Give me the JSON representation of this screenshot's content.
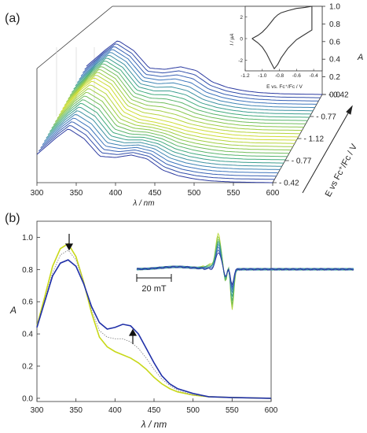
{
  "panel_a": {
    "label": "(a)",
    "x_axis_label": "λ / nm",
    "x_ticks": [
      "300",
      "350",
      "400",
      "450",
      "500",
      "550",
      "600"
    ],
    "z_axis_label": "A",
    "z_ticks": [
      "0.0",
      "0.2",
      "0.4",
      "0.6",
      "0.8",
      "1.0"
    ],
    "depth_axis_label": "E vs Fc⁺/Fc / V",
    "depth_ticks": [
      "- 0.42",
      "- 0.77",
      "- 1.12",
      "- 0.77",
      "- 0.42"
    ],
    "inset": {
      "x_label": "E vs. Fc⁺/Fc / V",
      "y_label": "I / µA",
      "x_ticks": [
        "-1.2",
        "-1.0",
        "-0.8",
        "-0.6",
        "-0.4"
      ],
      "y_ticks": [
        "2",
        "0",
        "-2"
      ]
    }
  },
  "panel_b": {
    "label": "(b)",
    "epr_scale_label": "20 mT"
  },
  "colors": {
    "gradient": [
      "#2b3aa0",
      "#3f7cc0",
      "#3aa880",
      "#8cc84a",
      "#d8e030"
    ],
    "reduced": "#c8d818",
    "oxidized": "#2030a8",
    "intermediate": "#888888"
  },
  "chart_data": [
    {
      "type": "line",
      "subtype": "3d-waterfall",
      "series_count": 28,
      "x_range": [
        300,
        600
      ],
      "z_range": [
        0,
        1.0
      ],
      "depth_sequence_V": [
        -0.42,
        -0.77,
        -1.12,
        -0.77,
        -0.42
      ],
      "xlabel": "λ / nm",
      "ylabel": "A",
      "x_sample": [
        300,
        325,
        340,
        360,
        380,
        400,
        420,
        440,
        460,
        480,
        500,
        520,
        550,
        600
      ],
      "profile_reduced": [
        0.45,
        0.8,
        0.95,
        0.8,
        0.45,
        0.33,
        0.28,
        0.22,
        0.15,
        0.1,
        0.06,
        0.03,
        0.01,
        0.0
      ],
      "profile_oxidized": [
        0.45,
        0.72,
        0.86,
        0.7,
        0.42,
        0.4,
        0.44,
        0.38,
        0.2,
        0.11,
        0.06,
        0.03,
        0.01,
        0.0
      ]
    },
    {
      "type": "line",
      "title": "",
      "xlabel": "E vs. Fc⁺/Fc / V",
      "ylabel": "I / µA",
      "xlim": [
        -1.2,
        -0.3
      ],
      "ylim": [
        -3,
        3
      ],
      "x": [
        -1.12,
        -1.05,
        -1.0,
        -0.95,
        -0.9,
        -0.86,
        -0.82,
        -0.78,
        -0.7,
        -0.6,
        -0.5,
        -0.42
      ],
      "forward": [
        0.0,
        0.3,
        0.6,
        1.0,
        1.5,
        1.9,
        2.2,
        2.4,
        2.6,
        2.8,
        2.9,
        3.0
      ],
      "reverse": [
        0.0,
        -0.4,
        -0.8,
        -1.4,
        -2.2,
        -2.8,
        -2.4,
        -1.8,
        -0.9,
        -0.1,
        0.4,
        0.8
      ]
    },
    {
      "type": "line",
      "xlabel": "λ / nm",
      "ylabel": "A",
      "xlim": [
        300,
        600
      ],
      "ylim": [
        -0.02,
        1.1
      ],
      "x_ticks": [
        "300",
        "350",
        "400",
        "450",
        "500",
        "550",
        "600"
      ],
      "y_ticks": [
        "0.0",
        "0.2",
        "0.4",
        "0.6",
        "0.8",
        "1.0"
      ],
      "x": [
        300,
        310,
        320,
        330,
        340,
        350,
        360,
        370,
        380,
        390,
        400,
        410,
        420,
        430,
        440,
        450,
        460,
        470,
        480,
        500,
        520,
        550,
        600
      ],
      "series": [
        {
          "values": [
            0.45,
            0.63,
            0.82,
            0.93,
            0.96,
            0.88,
            0.72,
            0.53,
            0.38,
            0.32,
            0.29,
            0.27,
            0.25,
            0.22,
            0.18,
            0.13,
            0.09,
            0.06,
            0.04,
            0.02,
            0.01,
            0.005,
            0.0
          ]
        },
        {
          "values": [
            0.45,
            0.61,
            0.78,
            0.89,
            0.92,
            0.86,
            0.72,
            0.55,
            0.42,
            0.38,
            0.37,
            0.37,
            0.35,
            0.31,
            0.25,
            0.18,
            0.12,
            0.08,
            0.05,
            0.02,
            0.01,
            0.005,
            0.0
          ]
        },
        {
          "values": [
            0.44,
            0.6,
            0.76,
            0.84,
            0.86,
            0.82,
            0.71,
            0.57,
            0.47,
            0.43,
            0.44,
            0.46,
            0.45,
            0.4,
            0.31,
            0.22,
            0.14,
            0.09,
            0.06,
            0.03,
            0.01,
            0.005,
            0.0
          ]
        }
      ]
    },
    {
      "type": "line",
      "subtype": "epr-spectra",
      "series_count": 9
    }
  ]
}
